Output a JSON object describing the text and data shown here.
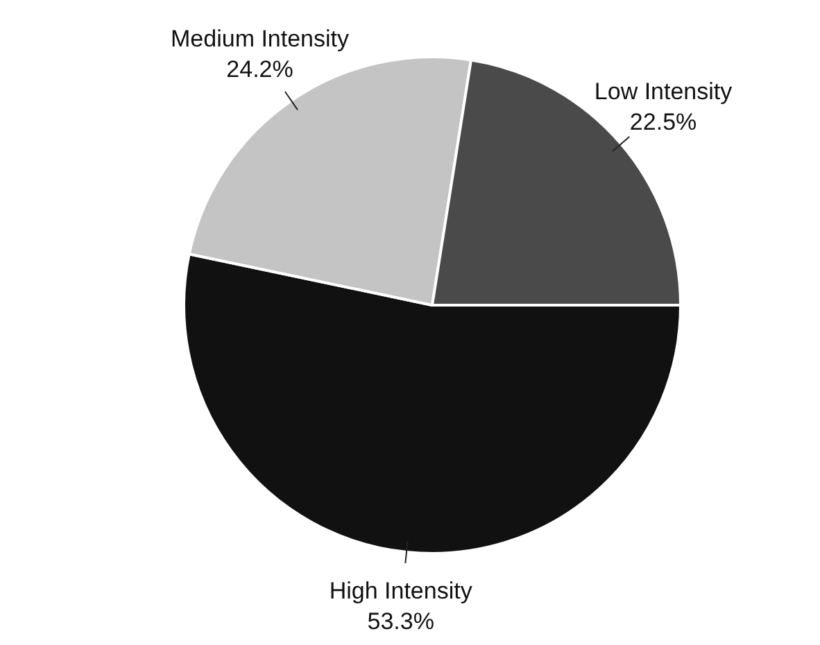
{
  "chart_data": {
    "type": "pie",
    "categories": [
      "High Intensity",
      "Medium Intensity",
      "Low Intensity"
    ],
    "values": [
      53.3,
      24.2,
      22.5
    ],
    "colors": [
      "#111111",
      "#c4c4c4",
      "#4a4a4a"
    ],
    "value_labels": [
      "53.3%",
      "24.2%",
      "22.5%"
    ],
    "legend": false
  }
}
